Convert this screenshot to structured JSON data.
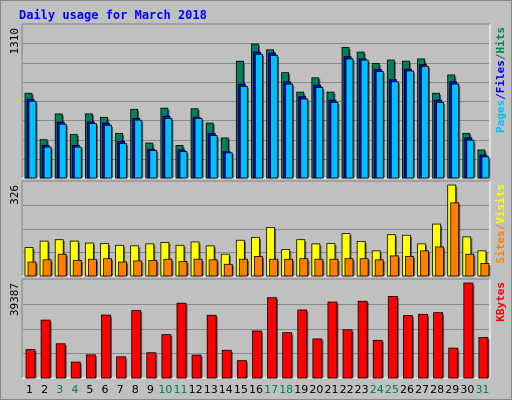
{
  "chart_data": {
    "type": "bar",
    "title": "Daily usage for March 2018",
    "categories": [
      "1",
      "2",
      "3",
      "4",
      "5",
      "6",
      "7",
      "8",
      "9",
      "10",
      "11",
      "12",
      "13",
      "14",
      "15",
      "16",
      "17",
      "18",
      "19",
      "20",
      "21",
      "22",
      "23",
      "24",
      "25",
      "26",
      "27",
      "28",
      "29",
      "30",
      "31"
    ],
    "weekend_days": [
      "3",
      "4",
      "10",
      "11",
      "17",
      "18",
      "24",
      "25",
      "31"
    ],
    "panels": [
      {
        "id": "hits_files_pages",
        "y_max_label": "1310",
        "y_max": 1310,
        "right_label": [
          "Pages",
          "/",
          "Files",
          "/",
          "Hits"
        ],
        "series": [
          {
            "name": "Hits",
            "color": "#00805c",
            "values": [
              740,
              335,
              560,
              380,
              560,
              530,
              390,
              600,
              305,
              610,
              285,
              605,
              480,
              350,
              1020,
              1170,
              1120,
              920,
              750,
              875,
              750,
              1140,
              1100,
              1000,
              1030,
              1020,
              1040,
              740,
              900,
              390,
              245
            ]
          },
          {
            "name": "Files",
            "color": "#0000ff",
            "values": [
              685,
              285,
              488,
              285,
              490,
              480,
              320,
              520,
              250,
              540,
              245,
              530,
              390,
              230,
              820,
              1100,
              1090,
              840,
              710,
              810,
              680,
              1060,
              1040,
              950,
              860,
              950,
              990,
              680,
              840,
              350,
              200
            ]
          },
          {
            "name": "Pages",
            "color": "#00c0ff",
            "values": [
              670,
              270,
              470,
              270,
              475,
              460,
              300,
              505,
              240,
              520,
              230,
              520,
              370,
              220,
              800,
              1080,
              1070,
              820,
              690,
              790,
              660,
              1040,
              1030,
              930,
              840,
              935,
              975,
              660,
              820,
              330,
              185
            ]
          }
        ]
      },
      {
        "id": "visits_sites",
        "y_max_label": "326",
        "y_max": 326,
        "right_label": [
          "Sites",
          "/",
          "Visits"
        ],
        "series": [
          {
            "name": "Visits",
            "color": "#ffff00",
            "values": [
              102,
              125,
              130,
              125,
              118,
              116,
              110,
              108,
              115,
              120,
              110,
              122,
              108,
              78,
              128,
              138,
              174,
              95,
              130,
              115,
              116,
              152,
              124,
              90,
              148,
              146,
              115,
              186,
              326,
              140,
              90
            ]
          },
          {
            "name": "Sites",
            "color": "#ff8000",
            "values": [
              50,
              58,
              78,
              56,
              60,
              62,
              50,
              54,
              56,
              60,
              52,
              60,
              58,
              42,
              60,
              70,
              60,
              60,
              62,
              60,
              60,
              62,
              62,
              58,
              72,
              70,
              90,
              104,
              262,
              78,
              45
            ]
          }
        ]
      },
      {
        "id": "kbytes",
        "y_max_label": "39387",
        "y_max": 39387,
        "right_label": [
          "KBytes"
        ],
        "series": [
          {
            "name": "KBytes",
            "color": "#ff0000",
            "values": [
              11800,
              24000,
              14200,
              6600,
              9600,
              26100,
              8800,
              28000,
              10500,
              18000,
              31000,
              9500,
              26000,
              11500,
              7200,
              19500,
              33300,
              18800,
              28200,
              16200,
              31500,
              20000,
              31800,
              15600,
              33800,
              25900,
              26400,
              27100,
              12400,
              39387,
              16800
            ]
          }
        ]
      }
    ]
  },
  "colors": {
    "background": "#c0c0c0",
    "plot_background": "#c0c0c0",
    "gridline": "#8a8a8a",
    "title": "#0000ff",
    "weekday_label": "#000000",
    "weekend_label": "#008040"
  }
}
